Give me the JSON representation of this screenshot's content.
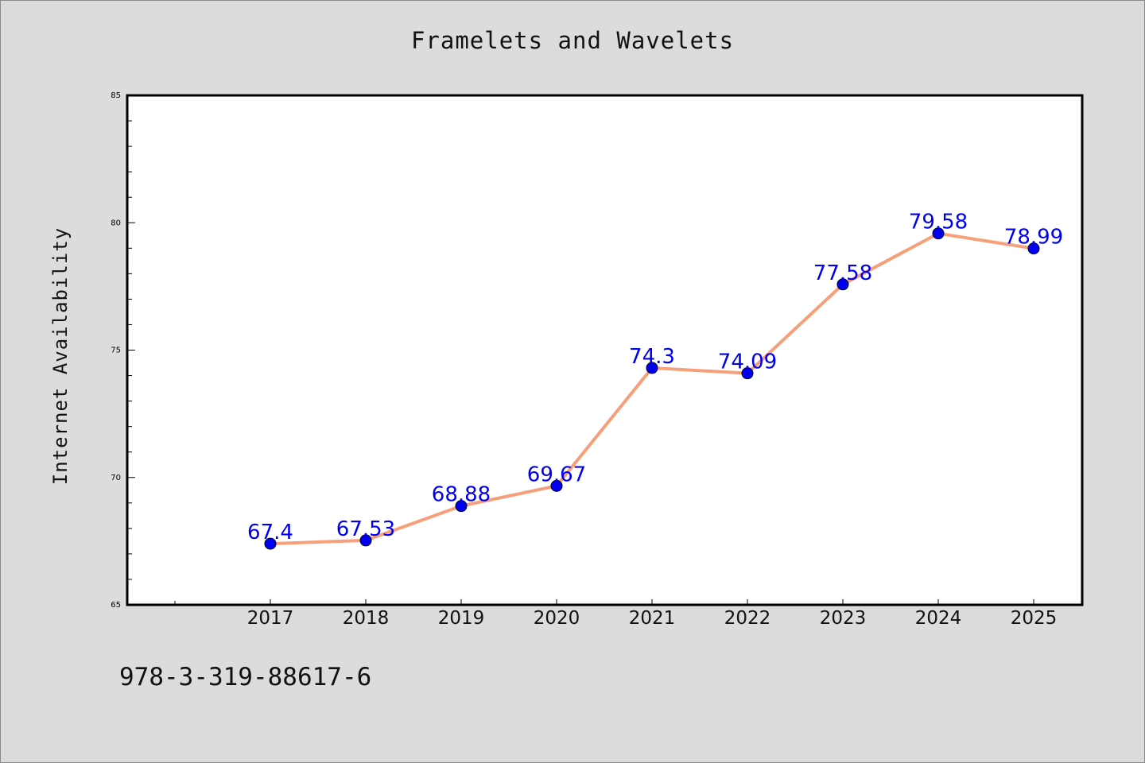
{
  "chart_data": {
    "type": "line",
    "title": "Framelets and Wavelets",
    "xlabel": "",
    "ylabel": "Internet Availability",
    "categories": [
      "2017",
      "2018",
      "2019",
      "2020",
      "2021",
      "2022",
      "2023",
      "2024",
      "2025"
    ],
    "series": [
      {
        "values": [
          67.4,
          67.53,
          68.88,
          69.67,
          74.3,
          74.09,
          77.58,
          79.58,
          78.99
        ],
        "data_labels": [
          "67.4",
          "67.53",
          "68.88",
          "69.67",
          "74.3",
          "74.09",
          "77.58",
          "79.58",
          "78.99"
        ],
        "line_color": "#f5a07a",
        "marker_color": "#0000ee"
      }
    ],
    "ylim": [
      65,
      85
    ],
    "yticks": [
      "65",
      "70",
      "75",
      "80",
      "85"
    ],
    "grid": false,
    "legend": "none",
    "label_color": "#0000ee"
  },
  "footnote": "978-3-319-88617-6"
}
